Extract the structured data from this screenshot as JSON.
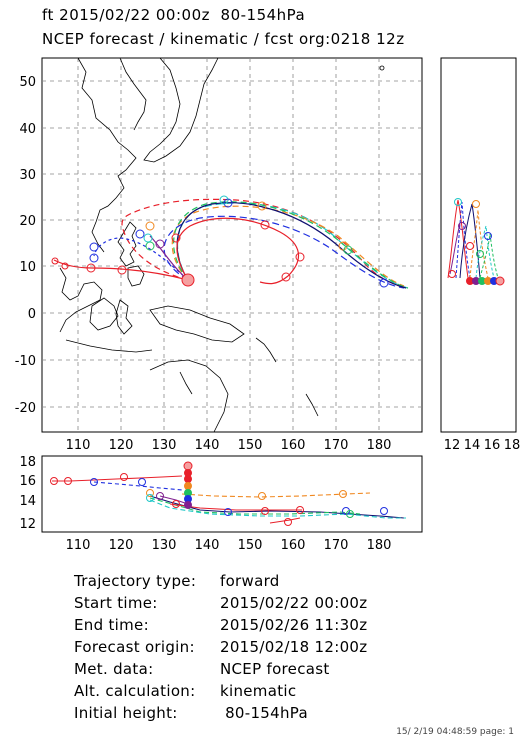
{
  "header": {
    "line1": "ft 2015/02/22 00:00z  80-154hPa",
    "line2": "NCEP forecast / kinematic / fcst org:0218 12z"
  },
  "map": {
    "lat_ticks": [
      "50",
      "40",
      "30",
      "20",
      "10",
      "0",
      "-10",
      "-20"
    ],
    "lon_ticks": [
      "110",
      "120",
      "130",
      "140",
      "150",
      "160",
      "170",
      "180"
    ]
  },
  "side_panel": {
    "x_ticks": [
      "12",
      "14",
      "16",
      "18"
    ]
  },
  "lower_panel": {
    "y_ticks": [
      "18",
      "16",
      "14",
      "12"
    ],
    "x_ticks": [
      "110",
      "120",
      "130",
      "140",
      "150",
      "160",
      "170",
      "180"
    ]
  },
  "colors": {
    "red": "#e8202a",
    "blue": "#2030e0",
    "orange": "#f08820",
    "green": "#20c060",
    "cyan": "#20c8c8",
    "purple": "#802090",
    "pink": "#f5a0a0",
    "darkblue": "#101070"
  },
  "info": {
    "rows": [
      {
        "label": "Trajectory type:",
        "value": "forward"
      },
      {
        "label": "Start time:",
        "value": "2015/02/22 00:00z"
      },
      {
        "label": "End time:",
        "value": "2015/02/26 11:30z"
      },
      {
        "label": "Forecast origin:",
        "value": "2015/02/18 12:00z"
      },
      {
        "label": "Met. data:",
        "value": "NCEP forecast"
      },
      {
        "label": "Alt. calculation:",
        "value": "kinematic"
      },
      {
        "label": "Initial height:",
        "value": " 80-154hPa"
      }
    ]
  },
  "footer": "15/ 2/19 04:48:59 page: 1"
}
